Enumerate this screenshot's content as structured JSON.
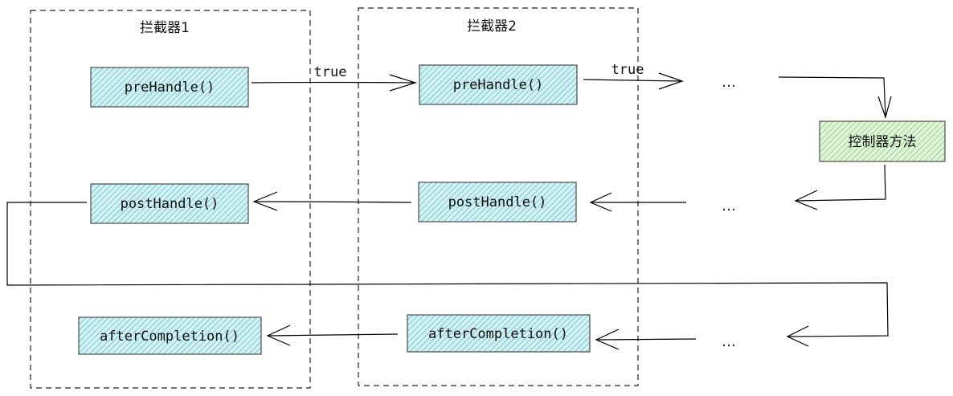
{
  "groups": {
    "interceptor1": {
      "title": "拦截器1"
    },
    "interceptor2": {
      "title": "拦截器2"
    }
  },
  "nodes": {
    "i1_pre": "preHandle()",
    "i1_post": "postHandle()",
    "i1_after": "afterCompletion()",
    "i2_pre": "preHandle()",
    "i2_post": "postHandle()",
    "i2_after": "afterCompletion()",
    "controller": "控制器方法"
  },
  "edge_labels": {
    "pre1_to_pre2": "true",
    "pre2_to_next": "true"
  },
  "ellipses": {
    "top": "…",
    "middle": "…",
    "bottom": "…"
  },
  "colors": {
    "interceptor_box_fill": "#cdeef2",
    "interceptor_box_stroke": "#2a2a2a",
    "interceptor_hatch": "#49b9c6",
    "controller_fill": "#d9f2d2",
    "controller_hatch": "#7cc26e"
  }
}
